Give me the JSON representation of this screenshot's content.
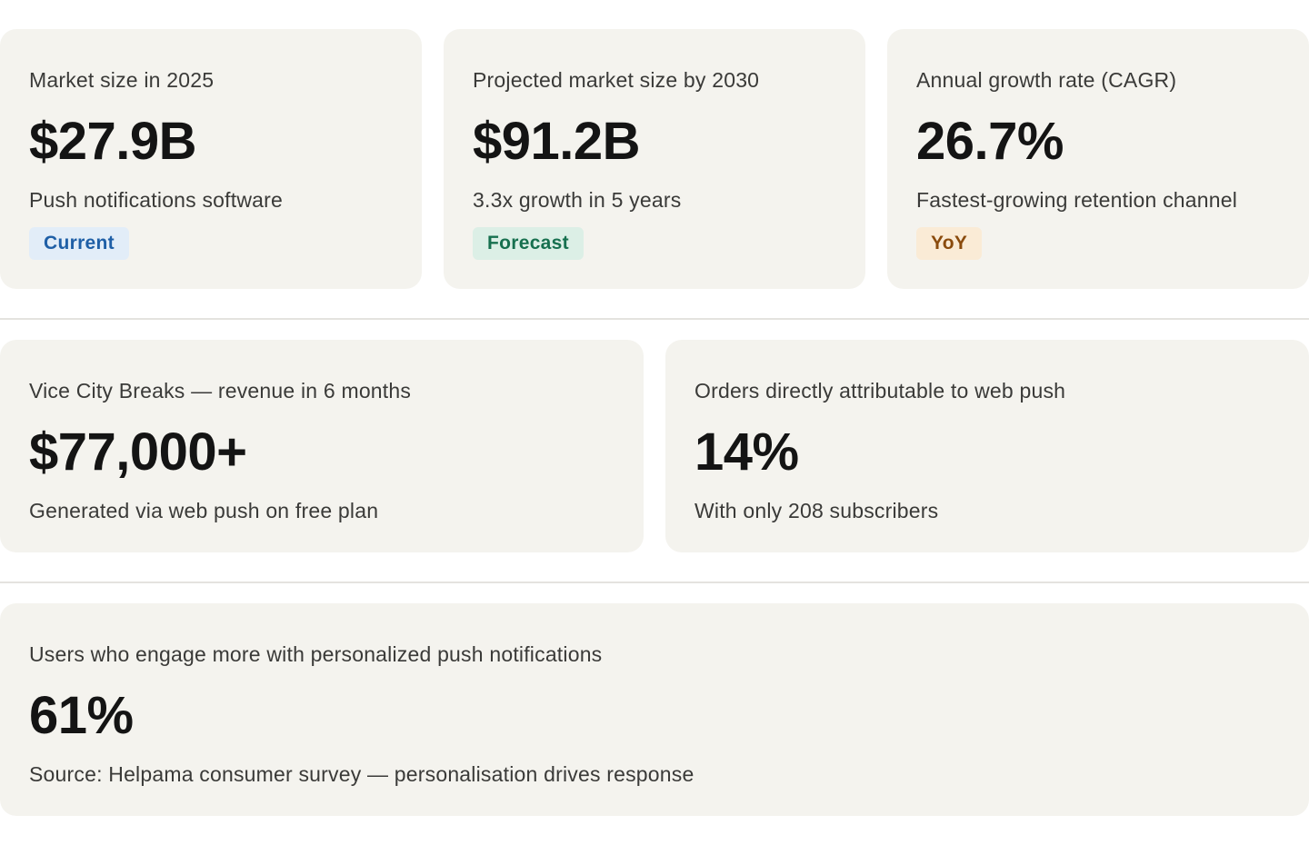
{
  "row1": [
    {
      "label": "Market size in 2025",
      "value": "$27.9B",
      "sub": "Push notifications software",
      "badge": "Current",
      "badge_color": "#1f5fa6"
    },
    {
      "label": "Projected market size by 2030",
      "value": "$91.2B",
      "sub": "3.3x growth in 5 years",
      "badge": "Forecast",
      "badge_color": "#17704f"
    },
    {
      "label": "Annual growth rate (CAGR)",
      "value": "26.7%",
      "sub": "Fastest-growing retention channel",
      "badge": "YoY",
      "badge_color": "#8a4b0d"
    }
  ],
  "row2": [
    {
      "label": "Vice City Breaks — revenue in 6 months",
      "value": "$77,000+",
      "sub": "Generated via web push on free plan"
    },
    {
      "label": "Orders directly attributable to web push",
      "value": "14%",
      "sub": "With only 208 subscribers"
    }
  ],
  "row3": [
    {
      "label": "Users who engage more with personalized push notifications",
      "value": "61%",
      "sub": "Source: Helpama consumer survey — personalisation drives response"
    }
  ],
  "colors": {
    "card_background": "#f4f3ee",
    "divider": "#e4e3df",
    "badge_current_bg": "#e2edf8",
    "badge_forecast_bg": "#dcefe6",
    "badge_yoy_bg": "#faebd6"
  }
}
